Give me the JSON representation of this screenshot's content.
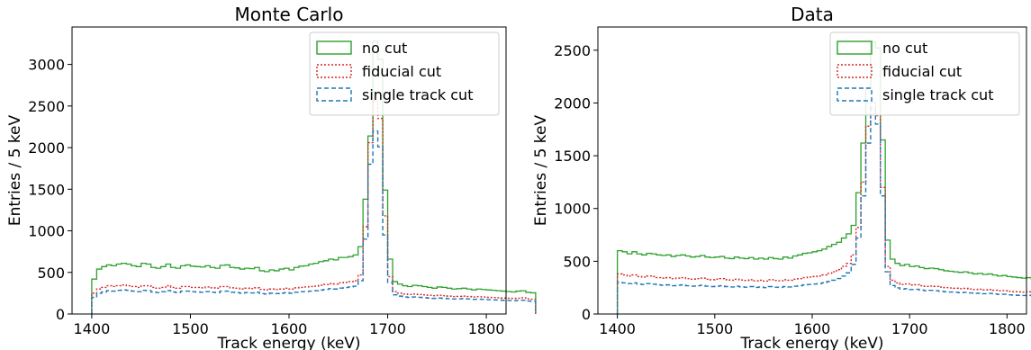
{
  "chart_data": [
    {
      "type": "step-histogram",
      "title": "Monte Carlo",
      "xlabel": "Track energy (keV)",
      "ylabel": "Entries / 5 keV",
      "xlim": [
        1380,
        1820
      ],
      "ylim": [
        0,
        3450
      ],
      "xticks": [
        1400,
        1500,
        1600,
        1700,
        1800
      ],
      "yticks": [
        0,
        500,
        1000,
        1500,
        2000,
        2500,
        3000
      ],
      "legend_position": "top-right",
      "bin_width": 5,
      "bin_start": 1400,
      "series": [
        {
          "name": "no cut",
          "color": "#2ca02c",
          "style": "solid",
          "values": [
            420,
            540,
            570,
            590,
            580,
            600,
            610,
            600,
            580,
            570,
            610,
            600,
            560,
            550,
            570,
            600,
            560,
            550,
            580,
            590,
            575,
            570,
            565,
            580,
            560,
            550,
            585,
            590,
            560,
            555,
            540,
            550,
            545,
            560,
            520,
            510,
            530,
            520,
            540,
            550,
            530,
            560,
            575,
            580,
            600,
            610,
            630,
            640,
            660,
            650,
            680,
            680,
            690,
            710,
            810,
            1380,
            2140,
            3280,
            3060,
            1490,
            660,
            390,
            360,
            340,
            330,
            345,
            340,
            330,
            320,
            310,
            325,
            320,
            310,
            300,
            305,
            310,
            300,
            290,
            300,
            295,
            290,
            285,
            280,
            275,
            270,
            265,
            275,
            280,
            260,
            255
          ]
        },
        {
          "name": "fiducial cut",
          "color": "#d62728",
          "style": "dotted",
          "values": [
            250,
            300,
            320,
            340,
            330,
            340,
            350,
            340,
            330,
            320,
            340,
            340,
            320,
            310,
            320,
            340,
            320,
            310,
            330,
            330,
            320,
            320,
            315,
            325,
            315,
            310,
            330,
            330,
            315,
            310,
            300,
            310,
            305,
            315,
            295,
            290,
            300,
            295,
            300,
            310,
            300,
            315,
            320,
            325,
            330,
            335,
            345,
            355,
            365,
            360,
            375,
            380,
            390,
            400,
            470,
            1050,
            2060,
            2560,
            2350,
            1180,
            450,
            270,
            250,
            240,
            235,
            240,
            235,
            230,
            225,
            220,
            225,
            220,
            215,
            210,
            212,
            215,
            210,
            205,
            208,
            205,
            200,
            198,
            195,
            192,
            190,
            188,
            190,
            195,
            182,
            178
          ]
        },
        {
          "name": "single track cut",
          "color": "#1f77b4",
          "style": "dashed",
          "values": [
            200,
            250,
            265,
            280,
            275,
            285,
            290,
            285,
            275,
            268,
            285,
            282,
            265,
            258,
            268,
            282,
            265,
            258,
            275,
            275,
            268,
            265,
            262,
            270,
            262,
            258,
            275,
            275,
            262,
            258,
            250,
            258,
            253,
            262,
            245,
            240,
            250,
            245,
            250,
            258,
            250,
            262,
            268,
            270,
            275,
            280,
            288,
            295,
            305,
            300,
            312,
            318,
            325,
            335,
            400,
            900,
            1800,
            2200,
            2010,
            950,
            380,
            230,
            215,
            205,
            200,
            205,
            200,
            196,
            192,
            188,
            192,
            188,
            184,
            180,
            182,
            184,
            180,
            176,
            178,
            176,
            172,
            170,
            168,
            165,
            163,
            160,
            163,
            166,
            156,
            152
          ]
        }
      ]
    },
    {
      "type": "step-histogram",
      "title": "Data",
      "xlabel": "Track energy (keV)",
      "ylabel": "Entries / 5 keV",
      "xlim": [
        1380,
        1820
      ],
      "ylim": [
        0,
        2720
      ],
      "xticks": [
        1400,
        1500,
        1600,
        1700,
        1800
      ],
      "yticks": [
        0,
        500,
        1000,
        1500,
        2000,
        2500
      ],
      "legend_position": "top-right",
      "bin_width": 5,
      "bin_start": 1400,
      "series": [
        {
          "name": "no cut",
          "color": "#2ca02c",
          "style": "solid",
          "values": [
            600,
            590,
            570,
            590,
            570,
            560,
            575,
            570,
            560,
            555,
            560,
            545,
            555,
            560,
            550,
            540,
            545,
            555,
            540,
            535,
            540,
            545,
            530,
            525,
            540,
            530,
            525,
            535,
            520,
            530,
            520,
            535,
            525,
            520,
            540,
            530,
            550,
            560,
            575,
            580,
            590,
            600,
            615,
            640,
            660,
            680,
            720,
            760,
            840,
            1150,
            1620,
            2140,
            2580,
            2520,
            1650,
            700,
            520,
            480,
            460,
            470,
            450,
            455,
            440,
            430,
            435,
            430,
            420,
            410,
            405,
            400,
            395,
            400,
            390,
            380,
            385,
            375,
            380,
            370,
            360,
            365,
            355,
            350,
            345,
            340,
            345,
            330,
            325,
            320,
            330,
            310
          ]
        },
        {
          "name": "fiducial cut",
          "color": "#d62728",
          "style": "dotted",
          "values": [
            380,
            370,
            360,
            370,
            355,
            350,
            360,
            355,
            345,
            340,
            345,
            335,
            340,
            345,
            335,
            330,
            335,
            340,
            330,
            325,
            330,
            335,
            325,
            320,
            330,
            322,
            318,
            325,
            315,
            320,
            312,
            325,
            318,
            315,
            325,
            320,
            330,
            335,
            345,
            350,
            355,
            360,
            370,
            385,
            400,
            420,
            450,
            480,
            560,
            820,
            1250,
            1780,
            2010,
            1880,
            1200,
            450,
            320,
            295,
            280,
            285,
            275,
            278,
            268,
            262,
            265,
            262,
            255,
            250,
            247,
            244,
            240,
            243,
            237,
            232,
            235,
            228,
            232,
            225,
            220,
            222,
            215,
            212,
            210,
            207,
            210,
            200,
            198,
            195,
            200,
            188
          ]
        },
        {
          "name": "single track cut",
          "color": "#1f77b4",
          "style": "dashed",
          "values": [
            300,
            295,
            288,
            295,
            283,
            280,
            288,
            283,
            276,
            272,
            276,
            268,
            272,
            276,
            268,
            264,
            268,
            272,
            264,
            260,
            264,
            268,
            260,
            256,
            264,
            258,
            254,
            260,
            252,
            256,
            250,
            260,
            254,
            252,
            260,
            256,
            264,
            268,
            276,
            280,
            284,
            288,
            296,
            308,
            320,
            336,
            360,
            390,
            470,
            720,
            1120,
            1620,
            1950,
            1800,
            1120,
            400,
            270,
            248,
            236,
            240,
            232,
            234,
            226,
            221,
            224,
            221,
            215,
            211,
            208,
            206,
            202,
            205,
            200,
            196,
            198,
            192,
            196,
            190,
            186,
            187,
            182,
            179,
            177,
            175,
            177,
            169,
            167,
            165,
            169,
            159
          ]
        }
      ]
    }
  ]
}
